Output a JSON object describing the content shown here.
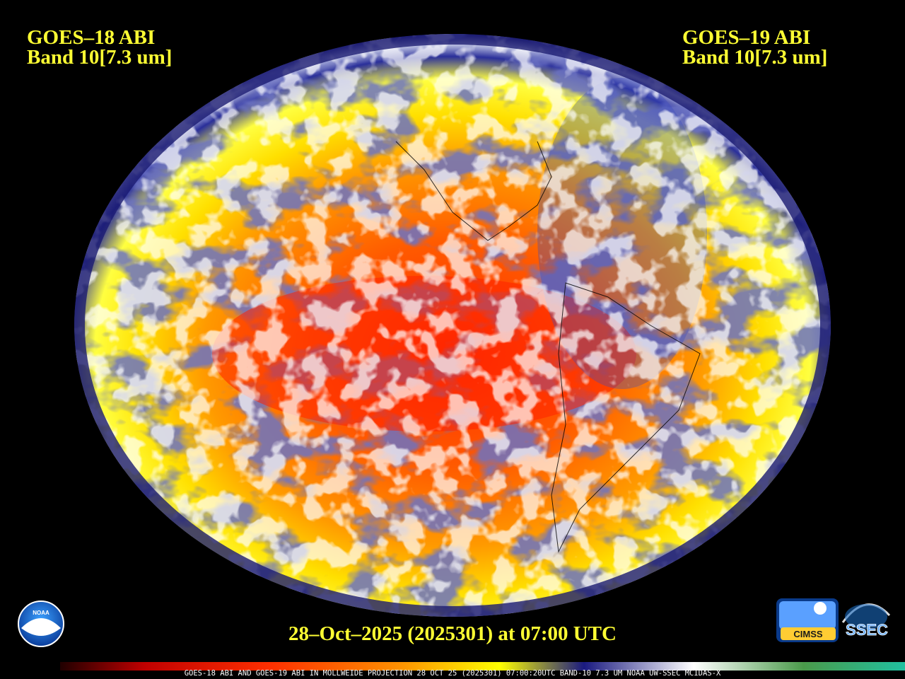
{
  "header": {
    "left": {
      "title": "GOES–18 ABI",
      "band": "Band 10[7.3 um]"
    },
    "right": {
      "title": "GOES–19 ABI",
      "band": "Band 10[7.3 um]"
    }
  },
  "timestamp": "28–Oct–2025 (2025301) at 07:00 UTC",
  "footer": "GOES-18 ABI AND GOES-19 ABI IN MOLLWEIDE PROJECTION 28 OCT 25 (2025301) 07:00:20UTC BAND-10 7.3 UM NOAA UW-SSEC MCIDAS-X",
  "logos": {
    "noaa": "NOAA",
    "cimss": "CIMSS",
    "ssec": "SSEC"
  }
}
